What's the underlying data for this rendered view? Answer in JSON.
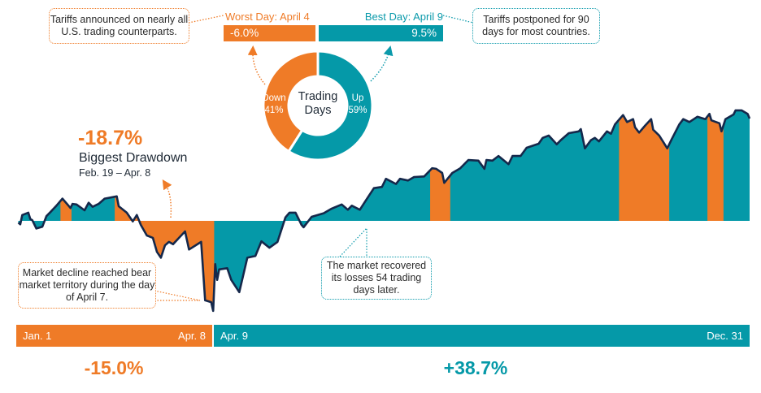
{
  "colors": {
    "up": "#0599a8",
    "down": "#ef7b27",
    "line": "#15284b"
  },
  "chart_data": {
    "type": "area",
    "xlabel": "",
    "ylabel": "",
    "x_unit": "day of year",
    "y_unit": "percent change from Jan. 1 (approx.)",
    "ylim": [
      -16,
      20
    ],
    "grid": false,
    "points": [
      [
        1,
        -0.3
      ],
      [
        2,
        -0.6
      ],
      [
        3,
        1.0
      ],
      [
        6,
        1.4
      ],
      [
        7,
        0.3
      ],
      [
        8,
        0.1
      ],
      [
        10,
        -1.3
      ],
      [
        13,
        -1.0
      ],
      [
        15,
        0.8
      ],
      [
        17,
        1.5
      ],
      [
        20,
        2.6
      ],
      [
        23,
        3.8
      ],
      [
        26,
        2.6
      ],
      [
        27,
        2.2
      ],
      [
        28,
        2.9
      ],
      [
        30,
        2.8
      ],
      [
        34,
        1.8
      ],
      [
        36,
        3.1
      ],
      [
        38,
        2.4
      ],
      [
        41,
        2.9
      ],
      [
        44,
        3.8
      ],
      [
        50,
        4.2
      ],
      [
        51,
        2.5
      ],
      [
        55,
        1.4
      ],
      [
        58,
        -0.1
      ],
      [
        60,
        1.0
      ],
      [
        62,
        -0.7
      ],
      [
        65,
        -2.5
      ],
      [
        68,
        -2.9
      ],
      [
        70,
        -5.3
      ],
      [
        72,
        -6.3
      ],
      [
        74,
        -4.2
      ],
      [
        76,
        -3.6
      ],
      [
        78,
        -4.0
      ],
      [
        81,
        -2.9
      ],
      [
        84,
        -1.8
      ],
      [
        86,
        -4.9
      ],
      [
        92,
        -3.6
      ],
      [
        94,
        -13.6
      ],
      [
        97,
        -13.9
      ],
      [
        98,
        -15.4
      ],
      [
        99,
        -7.4
      ],
      [
        100,
        -10.1
      ],
      [
        101,
        -8.3
      ],
      [
        105,
        -8.1
      ],
      [
        107,
        -10.1
      ],
      [
        111,
        -12.2
      ],
      [
        115,
        -6.3
      ],
      [
        119,
        -6.0
      ],
      [
        122,
        -3.5
      ],
      [
        126,
        -4.6
      ],
      [
        130,
        -3.6
      ],
      [
        134,
        0.6
      ],
      [
        136,
        1.4
      ],
      [
        139,
        1.4
      ],
      [
        142,
        -0.7
      ],
      [
        143,
        -1.1
      ],
      [
        147,
        0.7
      ],
      [
        153,
        1.3
      ],
      [
        157,
        2.1
      ],
      [
        162,
        2.8
      ],
      [
        165,
        1.9
      ],
      [
        167,
        2.6
      ],
      [
        171,
        1.9
      ],
      [
        174,
        3.5
      ],
      [
        178,
        5.6
      ],
      [
        182,
        5.8
      ],
      [
        184,
        7.2
      ],
      [
        189,
        6.3
      ],
      [
        191,
        7.2
      ],
      [
        195,
        6.9
      ],
      [
        198,
        7.5
      ],
      [
        203,
        7.6
      ],
      [
        207,
        9.0
      ],
      [
        209,
        8.9
      ],
      [
        212,
        8.2
      ],
      [
        213,
        6.5
      ],
      [
        217,
        8.2
      ],
      [
        221,
        9.0
      ],
      [
        225,
        10.4
      ],
      [
        230,
        10.3
      ],
      [
        233,
        8.9
      ],
      [
        234,
        10.4
      ],
      [
        237,
        10.3
      ],
      [
        240,
        11.1
      ],
      [
        245,
        9.7
      ],
      [
        247,
        11.1
      ],
      [
        251,
        11.1
      ],
      [
        254,
        12.5
      ],
      [
        260,
        13.2
      ],
      [
        262,
        14.2
      ],
      [
        265,
        14.6
      ],
      [
        269,
        13.1
      ],
      [
        271,
        13.8
      ],
      [
        275,
        15.0
      ],
      [
        280,
        15.3
      ],
      [
        281,
        15.7
      ],
      [
        283,
        12.4
      ],
      [
        286,
        13.8
      ],
      [
        288,
        14.2
      ],
      [
        290,
        13.6
      ],
      [
        294,
        15.3
      ],
      [
        296,
        14.9
      ],
      [
        298,
        16.5
      ],
      [
        302,
        18.1
      ],
      [
        304,
        16.9
      ],
      [
        307,
        17.4
      ],
      [
        308,
        16.0
      ],
      [
        310,
        15.1
      ],
      [
        313,
        16.3
      ],
      [
        316,
        17.4
      ],
      [
        317,
        15.6
      ],
      [
        320,
        14.6
      ],
      [
        324,
        12.4
      ],
      [
        326,
        13.8
      ],
      [
        330,
        16.5
      ],
      [
        332,
        17.4
      ],
      [
        335,
        16.9
      ],
      [
        339,
        17.8
      ],
      [
        343,
        17.4
      ],
      [
        345,
        18.3
      ],
      [
        346,
        17.2
      ],
      [
        350,
        16.7
      ],
      [
        351,
        15.3
      ],
      [
        353,
        17.4
      ],
      [
        357,
        18.2
      ],
      [
        358,
        18.9
      ],
      [
        361,
        18.9
      ],
      [
        364,
        18.3
      ],
      [
        365,
        17.5
      ]
    ],
    "drawdown_periods_days": [
      [
        22,
        27.5
      ],
      [
        49,
        98.5
      ],
      [
        206,
        216
      ],
      [
        300,
        325
      ],
      [
        344,
        352
      ]
    ],
    "donut": {
      "center_title": "Trading Days",
      "slices": [
        {
          "name": "Down",
          "pct": "41%",
          "value": 41
        },
        {
          "name": "Up",
          "pct": "59%",
          "value": 59
        }
      ]
    }
  },
  "worst": {
    "label": "Worst Day: April 4",
    "value": "-6.0%",
    "note": "Tariffs announced on nearly all U.S. trading counterparts."
  },
  "best": {
    "label": "Best Day: April 9",
    "value": "9.5%",
    "note": "Tariffs postponed for 90 days for most countries."
  },
  "drawdown": {
    "value": "-18.7%",
    "title": "Biggest Drawdown",
    "range": "Feb. 19 – Apr. 8"
  },
  "bear_note": "Market decline reached bear market territory during the day of April 7.",
  "recover_note": "The market recovered its losses 54 trading days later.",
  "periods": [
    {
      "start": "Jan. 1",
      "end": "Apr. 8",
      "return": "-15.0%"
    },
    {
      "start": "Apr. 9",
      "end": "Dec. 31",
      "return": "+38.7%"
    }
  ]
}
